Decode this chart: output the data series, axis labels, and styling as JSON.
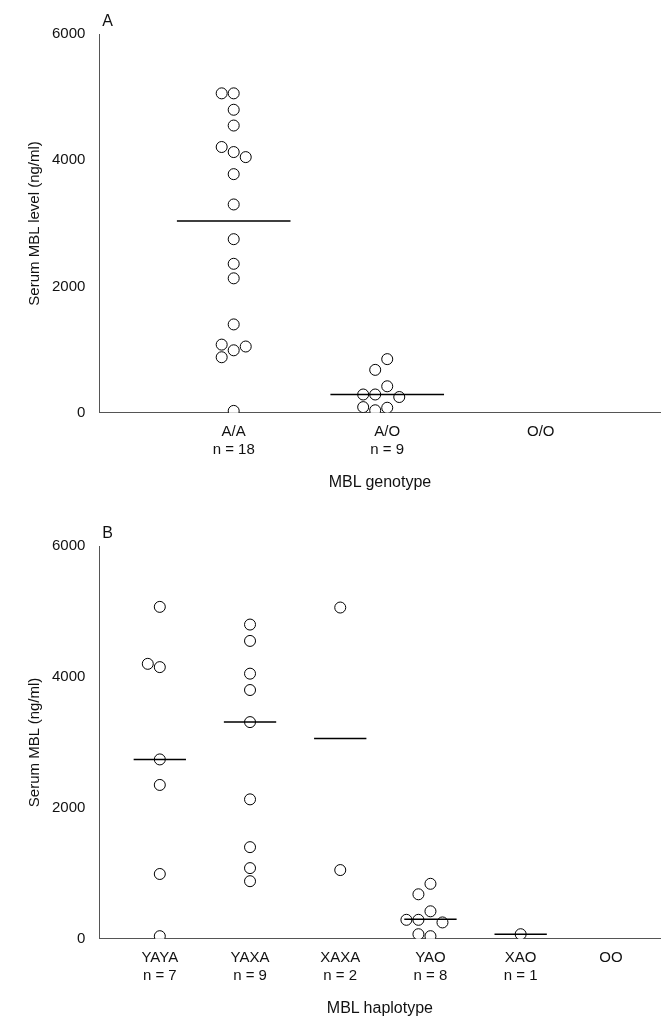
{
  "chart_data": [
    {
      "type": "scatter",
      "title": "A",
      "xlabel": "MBL genotype",
      "ylabel": "Serum MBL level (ng/ml)",
      "categories": [
        "A/A\nn = 18",
        "A/O\nn = 9",
        "O/O"
      ],
      "ylim": [
        0,
        6000
      ],
      "yticks": [
        0,
        2000,
        4000,
        6000
      ],
      "grid": false,
      "legend": false,
      "series": [
        {
          "color": "#000000",
          "marker": "circle",
          "x": [
            "A/A\nn = 18",
            "A/A\nn = 18",
            "A/A\nn = 18",
            "A/A\nn = 18",
            "A/A\nn = 18",
            "A/A\nn = 18",
            "A/A\nn = 18",
            "A/A\nn = 18",
            "A/A\nn = 18",
            "A/A\nn = 18",
            "A/A\nn = 18",
            "A/A\nn = 18",
            "A/A\nn = 18",
            "A/A\nn = 18",
            "A/A\nn = 18",
            "A/A\nn = 18",
            "A/A\nn = 18",
            "A/A\nn = 18",
            "A/O\nn = 9",
            "A/O\nn = 9",
            "A/O\nn = 9",
            "A/O\nn = 9",
            "A/O\nn = 9",
            "A/O\nn = 9",
            "A/O\nn = 9",
            "A/O\nn = 9",
            "A/O\nn = 9"
          ],
          "values": [
            5060,
            5060,
            4800,
            4550,
            4130,
            4210,
            4050,
            3780,
            3300,
            2750,
            2360,
            2130,
            1400,
            990,
            1080,
            1050,
            880,
            30,
            850,
            680,
            420,
            290,
            250,
            290,
            80,
            40,
            90
          ]
        },
        {
          "type": "box",
          "color": "#000000",
          "boxes": [
            {
              "low": 3040,
              "q1": 3040,
              "median": 3040,
              "q3": 3040,
              "high": 3040
            },
            {
              "low": 290,
              "q1": 290,
              "median": 290,
              "q3": 290,
              "high": 290
            },
            null
          ]
        }
      ]
    },
    {
      "type": "scatter",
      "title": "B",
      "xlabel": "MBL haplotype",
      "ylabel": "Serum MBL (ng/ml)",
      "categories": [
        "YAYA\nn = 7",
        "YAXA\nn = 9",
        "XAXA\nn = 2",
        "YAO\nn = 8",
        "XAO\nn = 1",
        "OO"
      ],
      "ylim": [
        0,
        6000
      ],
      "yticks": [
        0,
        2000,
        4000,
        6000
      ],
      "grid": false,
      "legend": false,
      "series": [
        {
          "color": "#000000",
          "marker": "circle",
          "x": [
            "YAYA\nn = 7",
            "YAYA\nn = 7",
            "YAYA\nn = 7",
            "YAYA\nn = 7",
            "YAYA\nn = 7",
            "YAYA\nn = 7",
            "YAYA\nn = 7",
            "YAXA\nn = 9",
            "YAXA\nn = 9",
            "YAXA\nn = 9",
            "YAXA\nn = 9",
            "YAXA\nn = 9",
            "YAXA\nn = 9",
            "YAXA\nn = 9",
            "YAXA\nn = 9",
            "YAXA\nn = 9",
            "XAXA\nn = 2",
            "XAXA\nn = 2",
            "YAO\nn = 8",
            "YAO\nn = 8",
            "YAO\nn = 8",
            "YAO\nn = 8",
            "YAO\nn = 8",
            "YAO\nn = 8",
            "YAO\nn = 8",
            "YAO\nn = 8",
            "XAO\nn = 1"
          ],
          "values": [
            5070,
            4150,
            4200,
            2740,
            2350,
            990,
            40,
            4800,
            4550,
            4050,
            3800,
            3310,
            2130,
            1400,
            1080,
            880,
            5060,
            1050,
            840,
            680,
            420,
            290,
            250,
            290,
            40,
            70,
            70
          ]
        },
        {
          "type": "box",
          "color": "#000000",
          "boxes": [
            {
              "low": 2740,
              "q1": 2740,
              "median": 2740,
              "q3": 2740,
              "high": 2740
            },
            {
              "low": 3310,
              "q1": 3310,
              "median": 3310,
              "q3": 3310,
              "high": 3310
            },
            {
              "low": 3060,
              "q1": 3060,
              "median": 3060,
              "q3": 3060,
              "high": 3060
            },
            {
              "low": 300,
              "q1": 300,
              "median": 300,
              "q3": 300,
              "high": 300
            },
            {
              "low": 70,
              "q1": 70,
              "median": 70,
              "q3": 70,
              "high": 70
            },
            null
          ]
        }
      ]
    }
  ]
}
